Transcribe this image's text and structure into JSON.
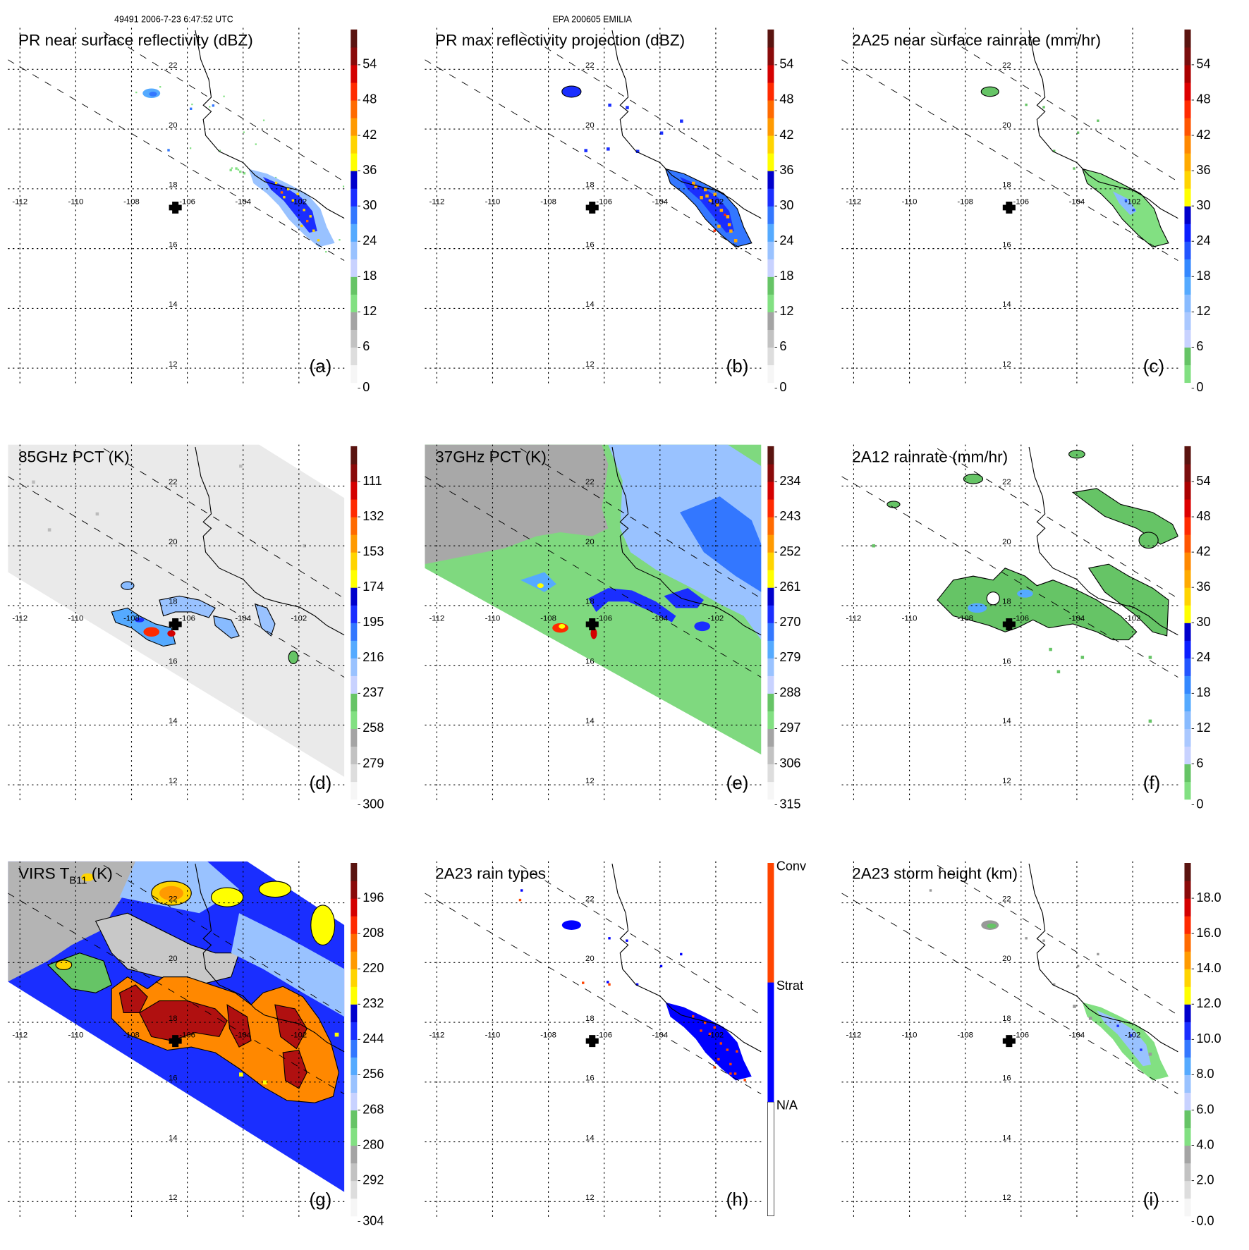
{
  "header": {
    "orbit_time": "49491 2006-7-23 6:47:52 UTC",
    "storm": "EPA 200605 EMILIA"
  },
  "map": {
    "lon_ticks": [
      -112,
      -110,
      -108,
      -106,
      -104,
      -102
    ],
    "lon_labels": [
      "-112",
      "-110",
      "-108",
      "-106",
      "-104",
      "-102"
    ],
    "lat_ticks": [
      22,
      20,
      18,
      16,
      14,
      12
    ],
    "lat_labels": [
      "22",
      "20",
      "18",
      "16",
      "14",
      "12"
    ],
    "center_marker": "plus-icon"
  },
  "palettes": {
    "standard": [
      "#f6f6f6",
      "#dddddd",
      "#c2c2c2",
      "#a4a4a4",
      "#82e082",
      "#66c466",
      "#c8d2ff",
      "#99c2ff",
      "#55aaff",
      "#3377ff",
      "#1a2eff",
      "#0000cc",
      "#ffff00",
      "#ffd400",
      "#ff9a00",
      "#ff6a00",
      "#ff2a00",
      "#d40000",
      "#8a0a0a",
      "#5a1410"
    ],
    "rainrate": [
      "#82e082",
      "#66c466",
      "#c8d2ff",
      "#aac8ff",
      "#88bbff",
      "#55aaff",
      "#3388ff",
      "#2255ff",
      "#0a1eff",
      "#0000cc",
      "#ffff00",
      "#ffd400",
      "#ffaa00",
      "#ff8800",
      "#ff5500",
      "#ff2a00",
      "#dd0000",
      "#aa0000",
      "#7a0e0e",
      "#5a1410"
    ],
    "raintype": [
      "#ffffff",
      "#0000ff",
      "#ff4400"
    ]
  },
  "panels": [
    {
      "key": "a",
      "title": "PR near surface reflectivity (dBZ)",
      "letter": "(a)",
      "palette": "standard",
      "range": [
        0,
        60
      ],
      "ticks": [
        54,
        48,
        42,
        36,
        30,
        24,
        18,
        12,
        6,
        0
      ],
      "tick_labels": [
        "54",
        "48",
        "42",
        "36",
        "30",
        "24",
        "18",
        "12",
        "6",
        "0"
      ]
    },
    {
      "key": "b",
      "title": "PR max reflectivity projection (dBZ)",
      "letter": "(b)",
      "palette": "standard",
      "range": [
        0,
        60
      ],
      "ticks": [
        54,
        48,
        42,
        36,
        30,
        24,
        18,
        12,
        6,
        0
      ],
      "tick_labels": [
        "54",
        "48",
        "42",
        "36",
        "30",
        "24",
        "18",
        "12",
        "6",
        "0"
      ]
    },
    {
      "key": "c",
      "title": "2A25 near surface rainrate (mm/hr)",
      "letter": "(c)",
      "palette": "rainrate",
      "range": [
        0,
        60
      ],
      "ticks": [
        54,
        48,
        42,
        36,
        30,
        24,
        18,
        12,
        6,
        0
      ],
      "tick_labels": [
        "54",
        "48",
        "42",
        "36",
        "30",
        "24",
        "18",
        "12",
        "6",
        "0"
      ]
    },
    {
      "key": "d",
      "title": "85GHz PCT (K)",
      "letter": "(d)",
      "palette": "standard",
      "range": [
        300,
        90
      ],
      "ticks": [
        111,
        132,
        153,
        174,
        195,
        216,
        237,
        258,
        279,
        300
      ],
      "tick_labels": [
        "111",
        "132",
        "153",
        "174",
        "195",
        "216",
        "237",
        "258",
        "279",
        "300"
      ]
    },
    {
      "key": "e",
      "title": "37GHz PCT (K)",
      "letter": "(e)",
      "palette": "standard",
      "range": [
        315,
        225
      ],
      "ticks": [
        234,
        243,
        252,
        261,
        270,
        279,
        288,
        297,
        306,
        315
      ],
      "tick_labels": [
        "234",
        "243",
        "252",
        "261",
        "270",
        "279",
        "288",
        "297",
        "306",
        "315"
      ]
    },
    {
      "key": "f",
      "title": "2A12 rainrate (mm/hr)",
      "letter": "(f)",
      "palette": "rainrate",
      "range": [
        0,
        60
      ],
      "ticks": [
        54,
        48,
        42,
        36,
        30,
        24,
        18,
        12,
        6,
        0
      ],
      "tick_labels": [
        "54",
        "48",
        "42",
        "36",
        "30",
        "24",
        "18",
        "12",
        "6",
        "0"
      ]
    },
    {
      "key": "g",
      "title": "VIRS T",
      "title_sub": "B11",
      "title_suffix": " (K)",
      "letter": "(g)",
      "palette": "standard",
      "range": [
        304,
        184
      ],
      "ticks": [
        196,
        208,
        220,
        232,
        244,
        256,
        268,
        280,
        292,
        304
      ],
      "tick_labels": [
        "196",
        "208",
        "220",
        "232",
        "244",
        "256",
        "268",
        "280",
        "292",
        "304"
      ]
    },
    {
      "key": "h",
      "title": "2A23 rain types",
      "letter": "(h)",
      "palette": "raintype",
      "categories": [
        "N/A",
        "Strat",
        "Conv"
      ]
    },
    {
      "key": "i",
      "title": "2A23 storm height (km)",
      "letter": "(i)",
      "palette": "standard",
      "range": [
        0,
        20
      ],
      "ticks": [
        18,
        16,
        14,
        12,
        10,
        8,
        6,
        4,
        2,
        0
      ],
      "tick_labels": [
        "18.0",
        "16.0",
        "14.0",
        "12.0",
        "10.0",
        "8.0",
        "6.0",
        "4.0",
        "2.0",
        "0.0"
      ]
    }
  ]
}
